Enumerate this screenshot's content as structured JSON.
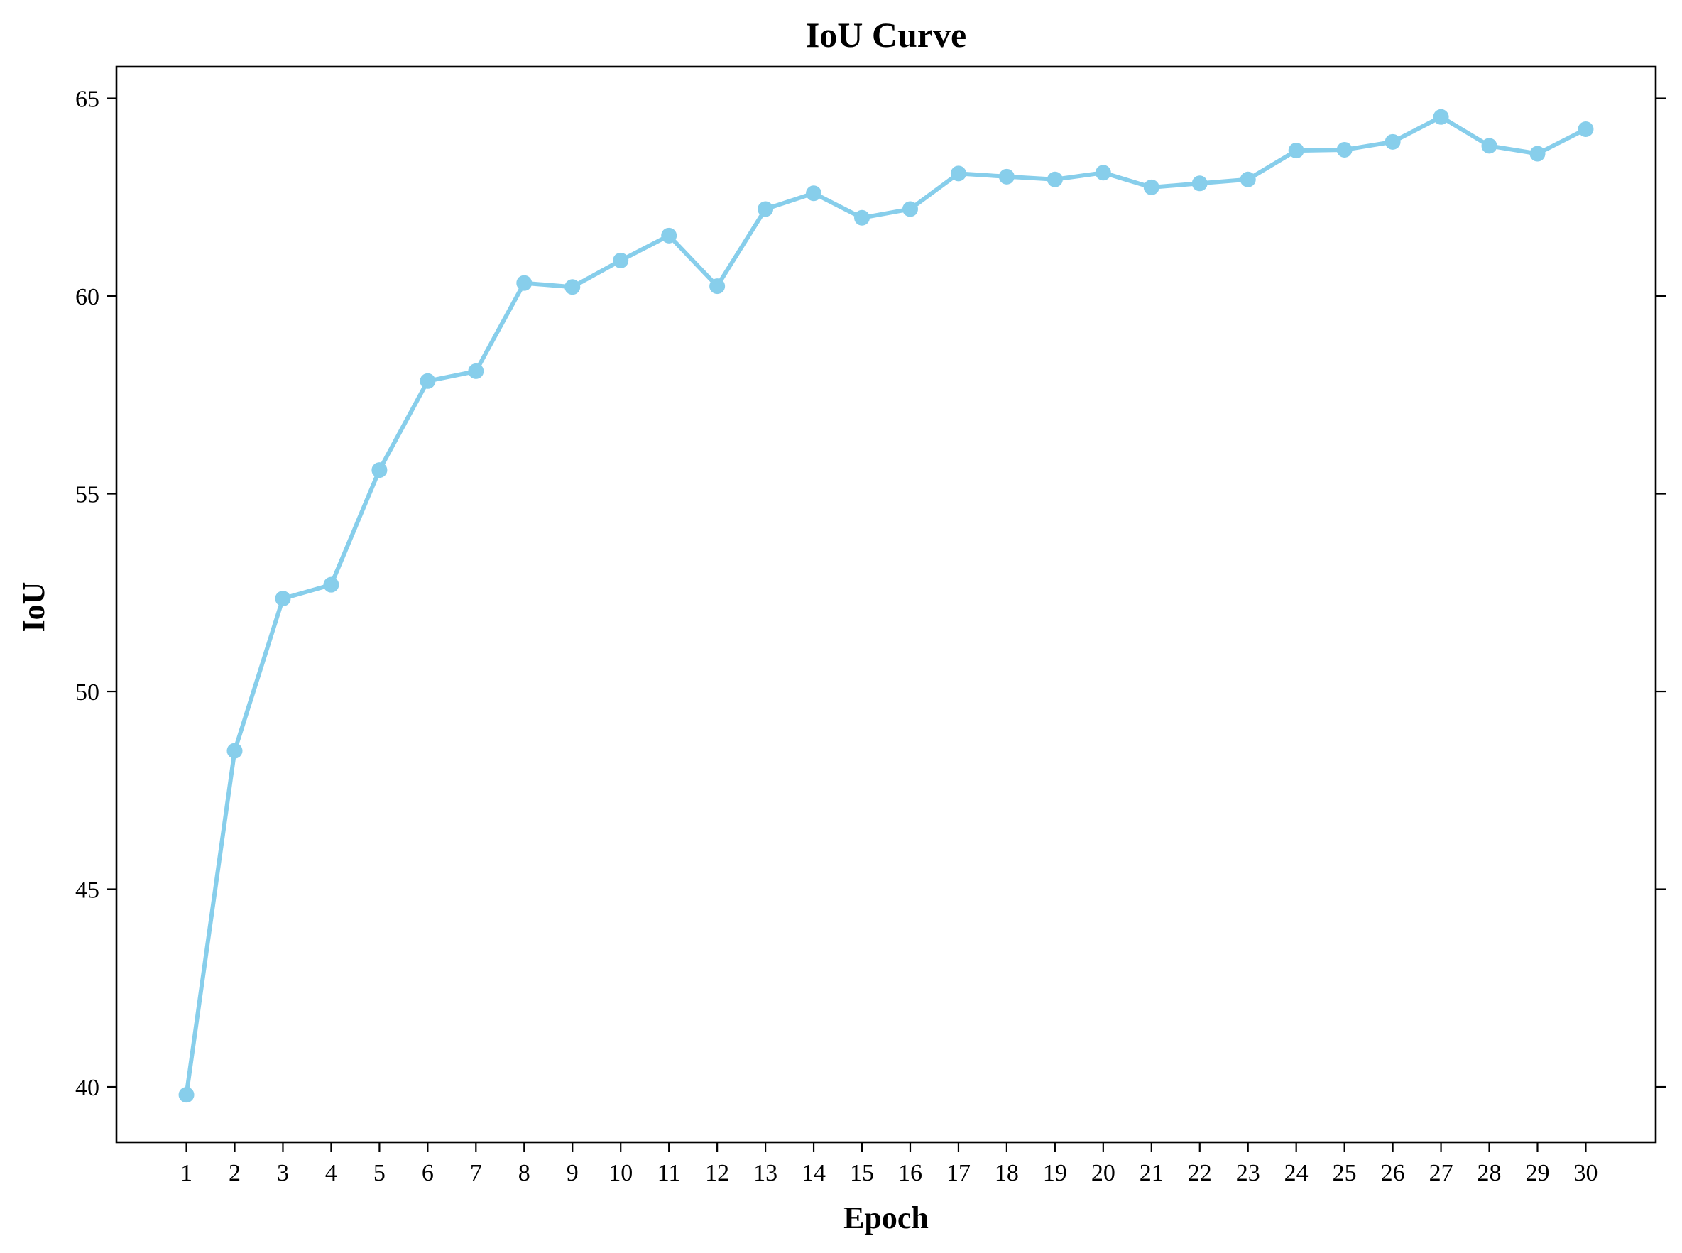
{
  "chart_data": {
    "type": "line",
    "title": "IoU Curve",
    "xlabel": "Epoch",
    "ylabel": "IoU",
    "x": [
      1,
      2,
      3,
      4,
      5,
      6,
      7,
      8,
      9,
      10,
      11,
      12,
      13,
      14,
      15,
      16,
      17,
      18,
      19,
      20,
      21,
      22,
      23,
      24,
      25,
      26,
      27,
      28,
      29,
      30
    ],
    "xticks": [
      "1",
      "2",
      "3",
      "4",
      "5",
      "6",
      "7",
      "8",
      "9",
      "10",
      "11",
      "12",
      "13",
      "14",
      "15",
      "16",
      "17",
      "18",
      "19",
      "20",
      "21",
      "22",
      "23",
      "24",
      "25",
      "26",
      "27",
      "28",
      "29",
      "30"
    ],
    "xlim": [
      -0.45,
      31.45
    ],
    "yticks": [
      40,
      45,
      50,
      55,
      60,
      65
    ],
    "ylim": [
      38.6,
      65.8
    ],
    "grid": false,
    "mirror_ticks": true,
    "series": [
      {
        "color": "#87CEEB",
        "marker": "circle",
        "values": [
          39.8,
          48.5,
          52.35,
          52.7,
          55.6,
          57.85,
          58.1,
          60.33,
          60.23,
          60.9,
          61.53,
          60.25,
          62.2,
          62.6,
          61.98,
          62.2,
          63.1,
          63.02,
          62.95,
          63.12,
          62.75,
          62.85,
          62.95,
          63.68,
          63.7,
          63.9,
          64.53,
          63.8,
          63.6,
          64.22
        ]
      }
    ]
  }
}
